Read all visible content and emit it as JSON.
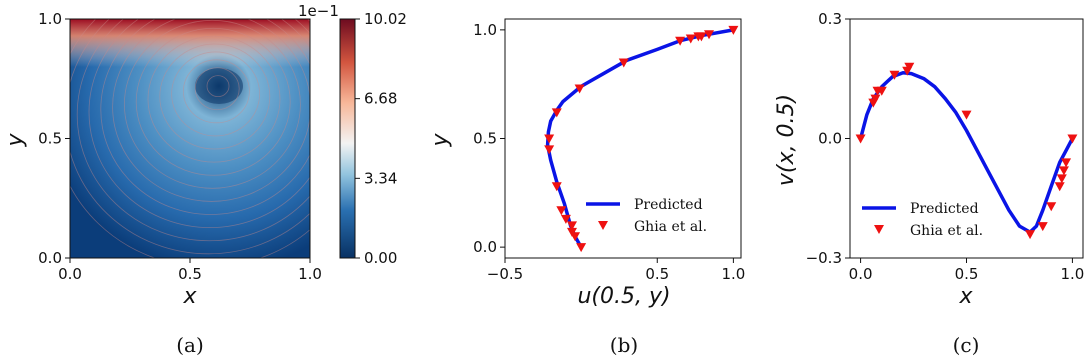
{
  "colors": {
    "line": "#0a14e6",
    "marker": "#ee1111",
    "cmap_low": "#0a3f78",
    "cmap_mid": "#f5f1ef",
    "cmap_high": "#8b0a1f"
  },
  "panels": [
    {
      "caption": "(a)",
      "xlabel": "x",
      "ylabel": "y",
      "x_ticks": [
        "0.0",
        "0.5",
        "1.0"
      ],
      "y_ticks": [
        "0.0",
        "0.5",
        "1.0"
      ],
      "colorbar": {
        "exponent_label": "1e−1",
        "ticks": [
          "0.00",
          "3.34",
          "6.68",
          "10.02"
        ]
      }
    },
    {
      "caption": "(b)",
      "xlabel": "u(0.5, y)",
      "ylabel": "y",
      "x_ticks": [
        "−0.5",
        "0.5",
        "1.0"
      ],
      "y_ticks": [
        "0.0",
        "0.5",
        "1.0"
      ],
      "legend": [
        "Predicted",
        "Ghia et al."
      ]
    },
    {
      "caption": "(c)",
      "xlabel": "x",
      "ylabel": "v(x, 0.5)",
      "x_ticks": [
        "0.0",
        "0.5",
        "1.0"
      ],
      "y_ticks": [
        "−0.3",
        "0.0",
        "0.3"
      ],
      "legend": [
        "Predicted",
        "Ghia et al."
      ]
    }
  ],
  "chart_data": [
    {
      "type": "heatmap",
      "description_of_field": "velocity magnitude of lid-driven cavity flow with streamlines",
      "xlabel": "x",
      "ylabel": "y",
      "xlim": [
        0,
        1
      ],
      "ylim": [
        0,
        1
      ],
      "colorbar": {
        "min": 0.0,
        "max": 10.02,
        "ticks": [
          0.0,
          3.34,
          6.68,
          10.02
        ],
        "scale": "1e-1"
      },
      "vortex_center": {
        "x": 0.62,
        "y": 0.73
      }
    },
    {
      "type": "line",
      "xlabel": "u(0.5, y)",
      "ylabel": "y",
      "xlim": [
        -0.5,
        1.05
      ],
      "ylim": [
        -0.05,
        1.05
      ],
      "series": [
        {
          "name": "Predicted",
          "x": [
            0.0,
            -0.04,
            -0.07,
            -0.11,
            -0.16,
            -0.2,
            -0.22,
            -0.215,
            -0.2,
            -0.16,
            -0.12,
            0.0,
            0.15,
            0.3,
            0.5,
            0.65,
            0.8,
            1.0
          ],
          "y": [
            0.0,
            0.05,
            0.1,
            0.2,
            0.3,
            0.4,
            0.47,
            0.53,
            0.58,
            0.63,
            0.67,
            0.74,
            0.8,
            0.86,
            0.91,
            0.95,
            0.975,
            1.0
          ]
        },
        {
          "name": "Ghia et al.",
          "x": [
            0.0,
            -0.04,
            -0.06,
            -0.06,
            -0.1,
            -0.13,
            -0.16,
            -0.21,
            -0.21,
            -0.16,
            -0.01,
            0.28,
            0.65,
            0.72,
            0.77,
            0.79,
            0.84,
            1.0
          ],
          "y": [
            0.0,
            0.05,
            0.07,
            0.1,
            0.13,
            0.17,
            0.28,
            0.45,
            0.5,
            0.62,
            0.73,
            0.85,
            0.95,
            0.96,
            0.97,
            0.97,
            0.98,
            1.0
          ]
        }
      ],
      "legend": {
        "placement": "lower-right"
      }
    },
    {
      "type": "line",
      "xlabel": "x",
      "ylabel": "v(x, 0.5)",
      "xlim": [
        -0.05,
        1.05
      ],
      "ylim": [
        -0.3,
        0.3
      ],
      "series": [
        {
          "name": "Predicted",
          "x": [
            0.0,
            0.03,
            0.06,
            0.1,
            0.15,
            0.2,
            0.24,
            0.3,
            0.35,
            0.4,
            0.45,
            0.5,
            0.55,
            0.6,
            0.65,
            0.7,
            0.75,
            0.8,
            0.83,
            0.86,
            0.9,
            0.94,
            0.97,
            1.0
          ],
          "y": [
            0.0,
            0.06,
            0.1,
            0.13,
            0.155,
            0.165,
            0.163,
            0.15,
            0.13,
            0.1,
            0.065,
            0.02,
            -0.03,
            -0.08,
            -0.13,
            -0.18,
            -0.22,
            -0.235,
            -0.22,
            -0.18,
            -0.12,
            -0.06,
            -0.03,
            0.0
          ]
        },
        {
          "name": "Ghia et al.",
          "x": [
            0.0,
            0.06,
            0.07,
            0.08,
            0.1,
            0.16,
            0.22,
            0.23,
            0.5,
            0.8,
            0.86,
            0.9,
            0.94,
            0.95,
            0.96,
            0.97,
            1.0
          ],
          "y": [
            0.0,
            0.09,
            0.1,
            0.12,
            0.12,
            0.16,
            0.17,
            0.18,
            0.06,
            -0.24,
            -0.22,
            -0.17,
            -0.12,
            -0.1,
            -0.08,
            -0.06,
            0.0
          ]
        }
      ],
      "legend": {
        "placement": "lower-left"
      }
    }
  ]
}
